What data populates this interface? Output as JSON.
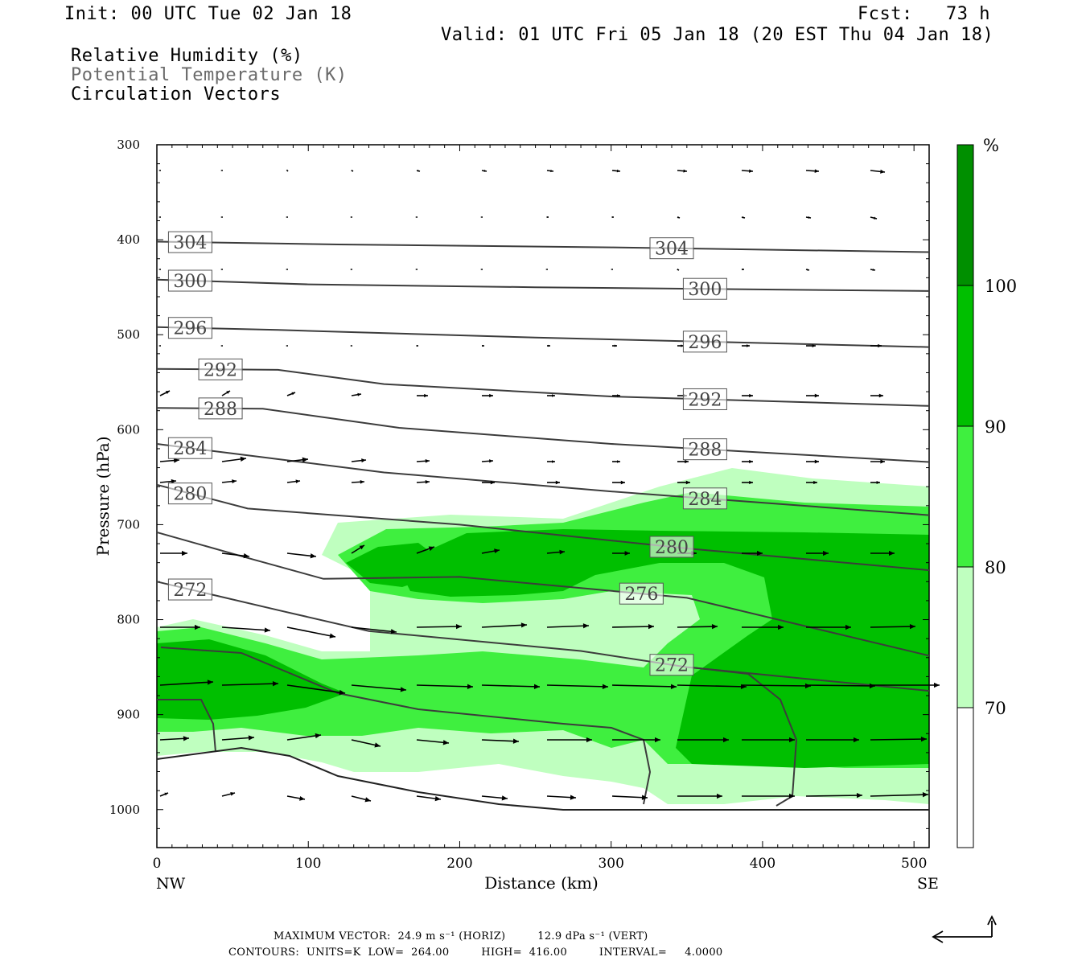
{
  "header": {
    "init": "Init: 00 UTC Tue 02 Jan 18",
    "fcst": "Fcst:   73 h",
    "valid": "Valid: 01 UTC Fri 05 Jan 18 (20 EST Thu 04 Jan 18)",
    "fields": [
      "Relative Humidity (%)",
      "Potential Temperature (K)",
      "Circulation Vectors"
    ]
  },
  "footer": {
    "line1": "MAXIMUM VECTOR:  24.9 m s⁻¹ (HORIZ)         12.9 dPa s⁻¹ (VERT)",
    "line2": "CONTOURS:  UNITS=K  LOW=  264.00         HIGH=  416.00         INTERVAL=     4.0000"
  },
  "colors": {
    "rh70": "#bfffbf",
    "rh80": "#3fef3f",
    "rh90": "#00bf00",
    "rh100": "#008f00",
    "isentrope": "#3c3c3c"
  },
  "chart_data": {
    "type": "cross-section",
    "xlabel": "Distance (km)",
    "ylabel": "Pressure (hPa)",
    "x_end_labels": [
      "NW",
      "SE"
    ],
    "xlim": [
      0,
      510
    ],
    "ylim": [
      1040,
      300
    ],
    "xticks": [
      0,
      100,
      200,
      300,
      400,
      500
    ],
    "yticks": [
      300,
      400,
      500,
      600,
      700,
      800,
      900,
      1000
    ],
    "colorbar": {
      "unit": "%",
      "levels": [
        70,
        80,
        90,
        100
      ]
    },
    "isentropes": [
      {
        "theta": 304,
        "label_x": [
          22,
          340
        ],
        "points": [
          [
            0,
            402
          ],
          [
            120,
            405
          ],
          [
            300,
            408
          ],
          [
            510,
            413
          ]
        ]
      },
      {
        "theta": 300,
        "label_x": [
          22,
          362
        ],
        "points": [
          [
            0,
            442
          ],
          [
            100,
            447
          ],
          [
            250,
            450
          ],
          [
            510,
            454
          ]
        ]
      },
      {
        "theta": 296,
        "label_x": [
          22,
          362
        ],
        "points": [
          [
            0,
            492
          ],
          [
            80,
            495
          ],
          [
            250,
            503
          ],
          [
            510,
            513
          ]
        ]
      },
      {
        "theta": 292,
        "label_x": [
          42,
          362
        ],
        "points": [
          [
            0,
            536
          ],
          [
            80,
            537
          ],
          [
            150,
            552
          ],
          [
            300,
            565
          ],
          [
            510,
            575
          ]
        ]
      },
      {
        "theta": 288,
        "label_x": [
          42,
          362
        ],
        "points": [
          [
            0,
            577
          ],
          [
            70,
            578
          ],
          [
            160,
            598
          ],
          [
            300,
            615
          ],
          [
            510,
            634
          ]
        ]
      },
      {
        "theta": 284,
        "label_x": [
          22,
          362
        ],
        "points": [
          [
            0,
            615
          ],
          [
            50,
            625
          ],
          [
            150,
            645
          ],
          [
            300,
            665
          ],
          [
            510,
            690
          ]
        ]
      },
      {
        "theta": 280,
        "label_x": [
          22,
          340
        ],
        "points": [
          [
            0,
            658
          ],
          [
            60,
            683
          ],
          [
            200,
            700
          ],
          [
            350,
            725
          ],
          [
            510,
            748
          ]
        ]
      },
      {
        "theta": 276,
        "label_x": [
          320
        ],
        "points": [
          [
            0,
            708
          ],
          [
            60,
            735
          ],
          [
            110,
            757
          ],
          [
            200,
            755
          ],
          [
            350,
            777
          ],
          [
            510,
            838
          ]
        ]
      },
      {
        "theta": 272,
        "label_x": [
          22,
          340
        ],
        "points": [
          [
            0,
            760
          ],
          [
            80,
            790
          ],
          [
            140,
            812
          ],
          [
            280,
            833
          ],
          [
            350,
            850
          ],
          [
            510,
            875
          ]
        ]
      }
    ],
    "rh_regions_note": "RH>=70% shading from ~640 hPa to surface east of 130 km; RH>=90% cores near 750 hPa (180-400 km) and 850-910 hPa (0-120 km, 350-510 km)",
    "max_vector": {
      "horiz": "24.9 m s-1",
      "vert": "12.9 dPa s-1"
    },
    "contours": {
      "units": "K",
      "low": 264.0,
      "high": 416.0,
      "interval": 4.0
    }
  }
}
